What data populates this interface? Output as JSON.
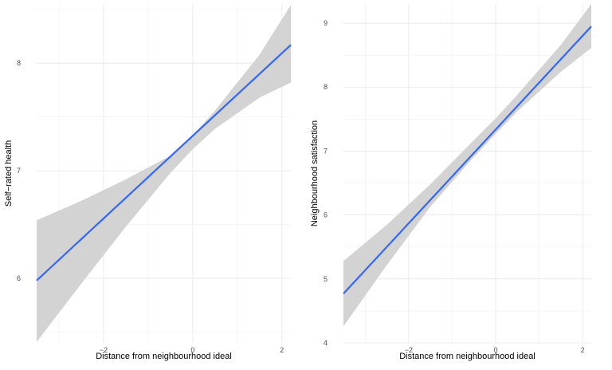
{
  "chart_data": [
    {
      "type": "line",
      "xlabel": "Distance from neighbourhood ideal",
      "ylabel": "Self−rated health",
      "xlim": [
        -3.5,
        2.2
      ],
      "ylim": [
        5.4,
        8.55
      ],
      "x_ticks": [
        -2,
        0,
        2
      ],
      "x_tick_labels": [
        "−2",
        "0",
        "2"
      ],
      "y_ticks": [
        6,
        7,
        8
      ],
      "y_tick_labels": [
        "6",
        "7",
        "8"
      ],
      "grid": true,
      "line": {
        "x": [
          -3.5,
          2.2
        ],
        "y": [
          5.98,
          8.17
        ]
      },
      "ribbon": {
        "x": [
          -3.5,
          -2.5,
          -1.5,
          -0.5,
          0,
          0.5,
          1.5,
          2.2
        ],
        "lower": [
          5.41,
          5.95,
          6.48,
          6.98,
          7.2,
          7.39,
          7.68,
          7.82
        ],
        "upper": [
          6.54,
          6.72,
          6.92,
          7.14,
          7.33,
          7.56,
          8.08,
          8.54
        ]
      },
      "line_color": "#3366FF",
      "ribbon_color": "#D3D3D3"
    },
    {
      "type": "line",
      "xlabel": "Distance from neighbourhood ideal",
      "ylabel": "Neighbourhood satisfaction",
      "xlim": [
        -3.5,
        2.2
      ],
      "ylim": [
        4.0,
        9.3
      ],
      "x_ticks": [
        -2,
        0,
        2
      ],
      "x_tick_labels": [
        "−2",
        "0",
        "2"
      ],
      "y_ticks": [
        4,
        5,
        6,
        7,
        8,
        9
      ],
      "y_tick_labels": [
        "4",
        "5",
        "6",
        "7",
        "8",
        "9"
      ],
      "grid": true,
      "line": {
        "x": [
          -3.5,
          2.2
        ],
        "y": [
          4.77,
          8.95
        ]
      },
      "ribbon": {
        "x": [
          -3.5,
          -2.5,
          -1.5,
          -0.5,
          0,
          0.5,
          1.5,
          2.2
        ],
        "lower": [
          4.26,
          5.22,
          6.13,
          6.91,
          7.27,
          7.62,
          8.24,
          8.61
        ],
        "upper": [
          5.28,
          5.85,
          6.48,
          7.17,
          7.51,
          7.88,
          8.66,
          9.3
        ]
      },
      "line_color": "#3366FF",
      "ribbon_color": "#D3D3D3"
    }
  ]
}
